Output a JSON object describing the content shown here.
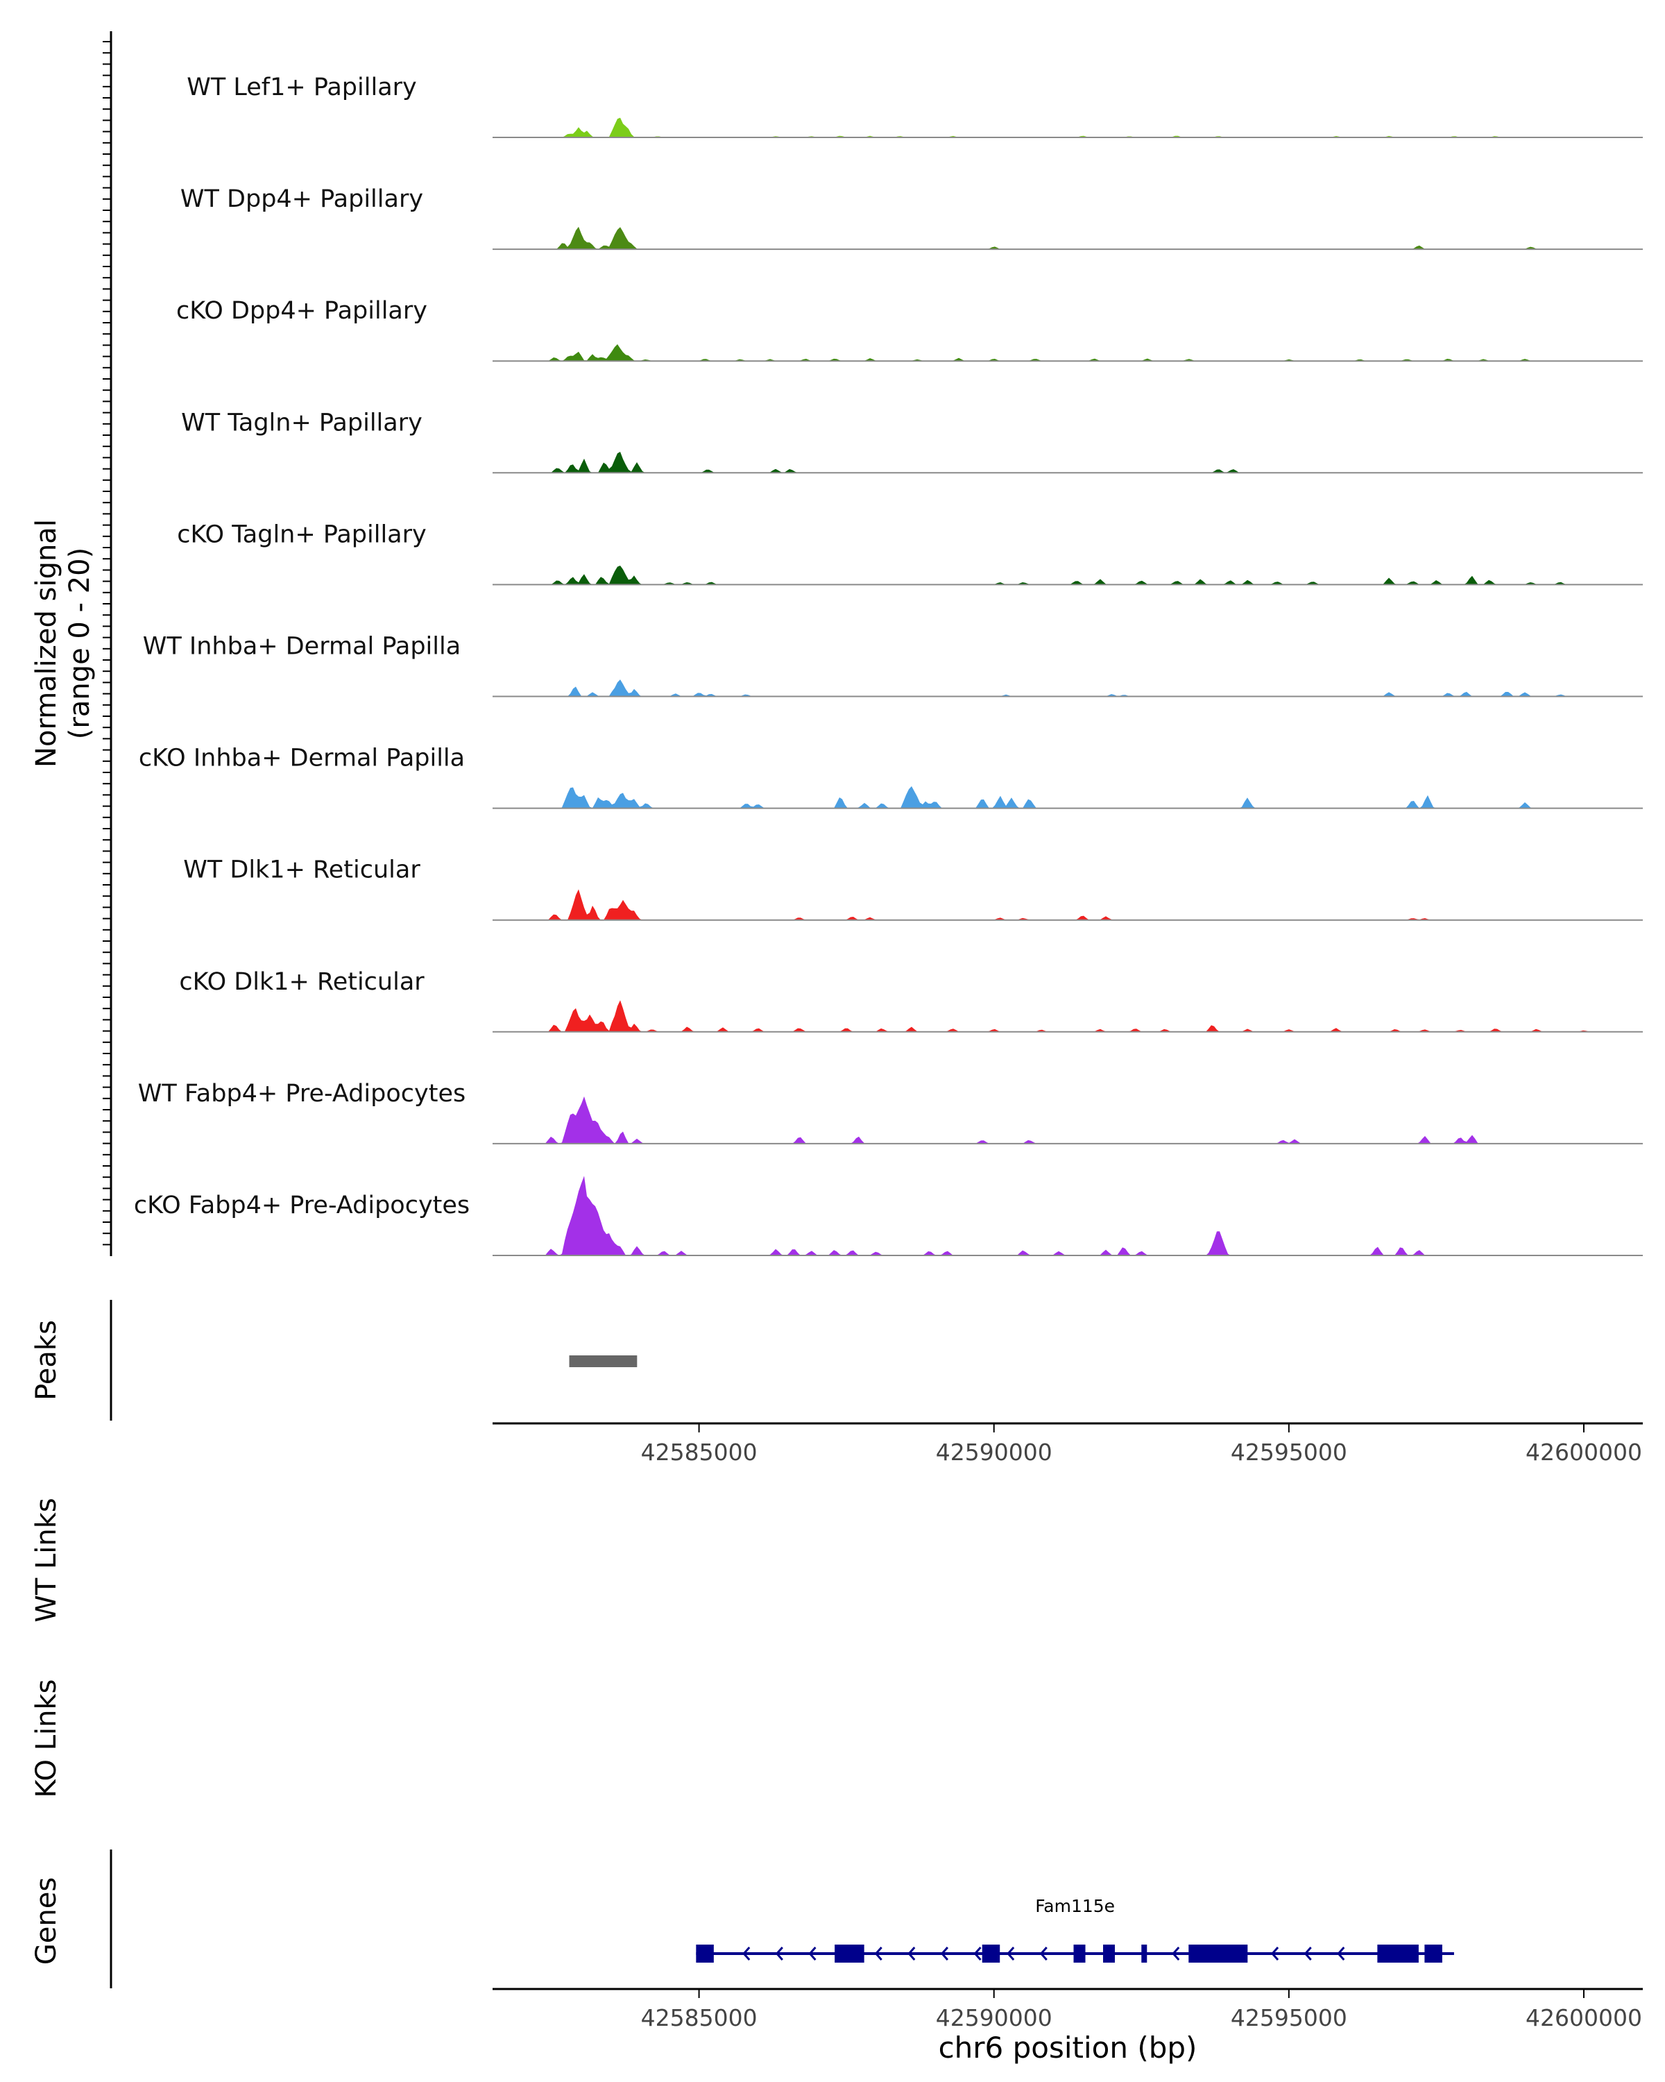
{
  "chart_data": {
    "type": "area",
    "title": "",
    "xlabel": "chr6 position (bp)",
    "xlim": [
      42581500,
      42601000
    ],
    "x_ticks": [
      42585000,
      42590000,
      42595000,
      42600000
    ],
    "x_tick_labels": [
      "42585000",
      "42590000",
      "42595000",
      "42600000"
    ],
    "coverage": {
      "ylabel_line1": "Normalized signal",
      "ylabel_line2": "(range 0 - 20)",
      "ylim": [
        0,
        20
      ],
      "series": [
        {
          "name": "WT Lef1+ Papillary",
          "color": "#7CCD1A",
          "peaks": [
            [
              42582800,
              0.9
            ],
            [
              42582950,
              2.2
            ],
            [
              42583100,
              1.4
            ],
            [
              42583650,
              4.4
            ],
            [
              42583800,
              1.2
            ],
            [
              42584300,
              0.3
            ],
            [
              42586300,
              0.3
            ],
            [
              42586900,
              0.3
            ],
            [
              42587400,
              0.4
            ],
            [
              42587900,
              0.3
            ],
            [
              42588400,
              0.3
            ],
            [
              42589300,
              0.3
            ],
            [
              42591500,
              0.4
            ],
            [
              42592300,
              0.3
            ],
            [
              42593100,
              0.4
            ],
            [
              42593800,
              0.3
            ],
            [
              42595800,
              0.3
            ],
            [
              42596700,
              0.3
            ],
            [
              42597800,
              0.3
            ],
            [
              42598500,
              0.3
            ]
          ]
        },
        {
          "name": "WT Dpp4+ Papillary",
          "color": "#4C8A14",
          "peaks": [
            [
              42582700,
              1.5
            ],
            [
              42582950,
              4.6
            ],
            [
              42583150,
              1.4
            ],
            [
              42583400,
              1.0
            ],
            [
              42583650,
              5.4
            ],
            [
              42583850,
              1.2
            ],
            [
              42590000,
              0.6
            ],
            [
              42597200,
              0.8
            ],
            [
              42599100,
              0.6
            ]
          ]
        },
        {
          "name": "cKO Dpp4+ Papillary",
          "color": "#3F8A10",
          "peaks": [
            [
              42582550,
              0.8
            ],
            [
              42582800,
              1.2
            ],
            [
              42582950,
              2.3
            ],
            [
              42583200,
              1.5
            ],
            [
              42583350,
              0.9
            ],
            [
              42583600,
              3.8
            ],
            [
              42583800,
              1.3
            ],
            [
              42584100,
              0.4
            ],
            [
              42585100,
              0.5
            ],
            [
              42585700,
              0.4
            ],
            [
              42586200,
              0.4
            ],
            [
              42586800,
              0.5
            ],
            [
              42587300,
              0.6
            ],
            [
              42587900,
              0.6
            ],
            [
              42588700,
              0.4
            ],
            [
              42589400,
              0.6
            ],
            [
              42590000,
              0.5
            ],
            [
              42590700,
              0.6
            ],
            [
              42591700,
              0.5
            ],
            [
              42592600,
              0.5
            ],
            [
              42593300,
              0.5
            ],
            [
              42595000,
              0.4
            ],
            [
              42596200,
              0.4
            ],
            [
              42597000,
              0.5
            ],
            [
              42597700,
              0.5
            ],
            [
              42598300,
              0.4
            ],
            [
              42599000,
              0.5
            ]
          ]
        },
        {
          "name": "WT Tagln+ Papillary",
          "color": "#0A5D0A",
          "peaks": [
            [
              42582600,
              1.3
            ],
            [
              42582850,
              2.2
            ],
            [
              42583050,
              2.8
            ],
            [
              42583400,
              2.5
            ],
            [
              42583650,
              4.6
            ],
            [
              42583950,
              2.2
            ],
            [
              42585150,
              0.9
            ],
            [
              42586300,
              0.9
            ],
            [
              42586550,
              0.9
            ],
            [
              42593800,
              0.9
            ],
            [
              42594050,
              0.9
            ]
          ]
        },
        {
          "name": "cKO Tagln+ Papillary",
          "color": "#0A5D0A",
          "peaks": [
            [
              42582600,
              1.0
            ],
            [
              42582850,
              1.8
            ],
            [
              42583050,
              2.4
            ],
            [
              42583350,
              2.0
            ],
            [
              42583650,
              4.8
            ],
            [
              42583900,
              2.0
            ],
            [
              42584500,
              0.6
            ],
            [
              42584800,
              0.6
            ],
            [
              42585200,
              0.6
            ],
            [
              42590100,
              0.5
            ],
            [
              42590500,
              0.6
            ],
            [
              42591400,
              1.0
            ],
            [
              42591800,
              1.1
            ],
            [
              42592500,
              1.0
            ],
            [
              42593100,
              1.0
            ],
            [
              42593500,
              1.1
            ],
            [
              42594000,
              1.0
            ],
            [
              42594300,
              1.0
            ],
            [
              42594800,
              0.8
            ],
            [
              42595400,
              0.8
            ],
            [
              42596700,
              1.4
            ],
            [
              42597100,
              0.9
            ],
            [
              42597500,
              0.9
            ],
            [
              42598100,
              1.8
            ],
            [
              42598400,
              1.0
            ],
            [
              42599100,
              0.6
            ],
            [
              42599600,
              0.6
            ]
          ]
        },
        {
          "name": "WT Inhba+ Dermal Papilla",
          "color": "#4A9FE3",
          "peaks": [
            [
              42582900,
              2.2
            ],
            [
              42583200,
              0.9
            ],
            [
              42583650,
              3.6
            ],
            [
              42583900,
              1.6
            ],
            [
              42584600,
              0.6
            ],
            [
              42585000,
              1.0
            ],
            [
              42585200,
              0.6
            ],
            [
              42585800,
              0.5
            ],
            [
              42590200,
              0.4
            ],
            [
              42592000,
              0.5
            ],
            [
              42592200,
              0.4
            ],
            [
              42596700,
              1.0
            ],
            [
              42597700,
              0.8
            ],
            [
              42598000,
              1.0
            ],
            [
              42598700,
              1.3
            ],
            [
              42599000,
              1.0
            ],
            [
              42599600,
              0.5
            ]
          ]
        },
        {
          "name": "cKO Inhba+ Dermal Papilla",
          "color": "#4A9FE3",
          "peaks": [
            [
              42582850,
              5.0
            ],
            [
              42583050,
              2.6
            ],
            [
              42583300,
              2.4
            ],
            [
              42583450,
              2.2
            ],
            [
              42583700,
              3.5
            ],
            [
              42583900,
              1.8
            ],
            [
              42584100,
              1.2
            ],
            [
              42585800,
              1.2
            ],
            [
              42586000,
              1.0
            ],
            [
              42587400,
              2.6
            ],
            [
              42587800,
              1.2
            ],
            [
              42588100,
              1.2
            ],
            [
              42588600,
              5.2
            ],
            [
              42588850,
              1.6
            ],
            [
              42589000,
              1.6
            ],
            [
              42589800,
              2.4
            ],
            [
              42590100,
              2.8
            ],
            [
              42590300,
              2.4
            ],
            [
              42590600,
              2.4
            ],
            [
              42594300,
              2.4
            ],
            [
              42597100,
              1.8
            ],
            [
              42597350,
              2.6
            ],
            [
              42599000,
              1.2
            ]
          ]
        },
        {
          "name": "WT Dlk1+ Reticular",
          "color": "#F02020",
          "peaks": [
            [
              42582550,
              1.5
            ],
            [
              42582950,
              6.2
            ],
            [
              42583200,
              3.0
            ],
            [
              42583500,
              2.8
            ],
            [
              42583700,
              4.6
            ],
            [
              42583900,
              2.0
            ],
            [
              42586700,
              0.6
            ],
            [
              42587600,
              0.8
            ],
            [
              42587900,
              0.6
            ],
            [
              42590100,
              0.5
            ],
            [
              42590500,
              0.5
            ],
            [
              42591500,
              1.0
            ],
            [
              42591900,
              0.8
            ],
            [
              42597100,
              0.5
            ],
            [
              42597300,
              0.4
            ]
          ]
        },
        {
          "name": "cKO Dlk1+ Reticular",
          "color": "#F02020",
          "peaks": [
            [
              42582550,
              1.6
            ],
            [
              42582900,
              5.0
            ],
            [
              42583150,
              3.4
            ],
            [
              42583350,
              2.6
            ],
            [
              42583650,
              6.8
            ],
            [
              42583900,
              1.8
            ],
            [
              42584200,
              0.6
            ],
            [
              42584800,
              1.1
            ],
            [
              42585400,
              0.9
            ],
            [
              42586000,
              0.8
            ],
            [
              42586700,
              1.0
            ],
            [
              42587500,
              0.9
            ],
            [
              42588100,
              0.8
            ],
            [
              42588600,
              1.0
            ],
            [
              42589300,
              0.8
            ],
            [
              42590000,
              0.6
            ],
            [
              42590800,
              0.5
            ],
            [
              42591800,
              0.6
            ],
            [
              42592400,
              0.8
            ],
            [
              42592900,
              0.6
            ],
            [
              42593700,
              1.5
            ],
            [
              42594300,
              0.6
            ],
            [
              42595000,
              0.6
            ],
            [
              42595800,
              0.8
            ],
            [
              42596800,
              0.6
            ],
            [
              42597300,
              0.6
            ],
            [
              42597900,
              0.5
            ],
            [
              42598500,
              0.8
            ],
            [
              42599200,
              0.6
            ],
            [
              42600000,
              0.3
            ]
          ]
        },
        {
          "name": "WT Fabp4+ Pre-Adipocytes",
          "color": "#A330E8",
          "peaks": [
            [
              42582500,
              1.5
            ],
            [
              42582850,
              7.0
            ],
            [
              42583050,
              9.2
            ],
            [
              42583250,
              5.2
            ],
            [
              42583450,
              2.0
            ],
            [
              42583700,
              2.8
            ],
            [
              42583950,
              1.0
            ],
            [
              42586700,
              1.6
            ],
            [
              42587700,
              1.6
            ],
            [
              42589800,
              0.9
            ],
            [
              42590600,
              0.9
            ],
            [
              42594900,
              0.9
            ],
            [
              42595100,
              0.9
            ],
            [
              42597300,
              1.6
            ],
            [
              42597900,
              1.4
            ],
            [
              42598100,
              2.0
            ]
          ]
        },
        {
          "name": "cKO Fabp4+ Pre-Adipocytes",
          "color": "#A330E8",
          "peaks": [
            [
              42582500,
              1.6
            ],
            [
              42582850,
              10.0
            ],
            [
              42583050,
              17.0
            ],
            [
              42583250,
              10.0
            ],
            [
              42583450,
              5.2
            ],
            [
              42583650,
              2.4
            ],
            [
              42583950,
              2.2
            ],
            [
              42584400,
              1.0
            ],
            [
              42584700,
              0.9
            ],
            [
              42586300,
              1.4
            ],
            [
              42586600,
              1.6
            ],
            [
              42586900,
              1.0
            ],
            [
              42587300,
              1.2
            ],
            [
              42587600,
              1.2
            ],
            [
              42588000,
              0.9
            ],
            [
              42588900,
              1.0
            ],
            [
              42589200,
              1.0
            ],
            [
              42590500,
              1.2
            ],
            [
              42591100,
              1.0
            ],
            [
              42591900,
              1.2
            ],
            [
              42592200,
              2.0
            ],
            [
              42592500,
              1.0
            ],
            [
              42593800,
              5.4
            ],
            [
              42596500,
              2.0
            ],
            [
              42596900,
              2.0
            ],
            [
              42597200,
              1.2
            ]
          ]
        }
      ]
    },
    "peaks_track": {
      "label": "Peaks",
      "color": "#666666",
      "regions": [
        [
          42582800,
          42583950
        ]
      ]
    },
    "links_tracks": [
      {
        "label": "WT Links",
        "links": []
      },
      {
        "label": "KO Links",
        "links": []
      }
    ],
    "genes_track": {
      "label": "Genes",
      "color": "#00008B",
      "gene": {
        "name": "Fam115e",
        "strand": "-",
        "start": 42584950,
        "end": 42597800,
        "exons": [
          [
            42584950,
            42585250
          ],
          [
            42587300,
            42587800
          ],
          [
            42589800,
            42590100
          ],
          [
            42591350,
            42591550
          ],
          [
            42591850,
            42592050
          ],
          [
            42592500,
            42592580
          ],
          [
            42593300,
            42594300
          ],
          [
            42596500,
            42597200
          ],
          [
            42597300,
            42597600
          ]
        ]
      }
    }
  }
}
